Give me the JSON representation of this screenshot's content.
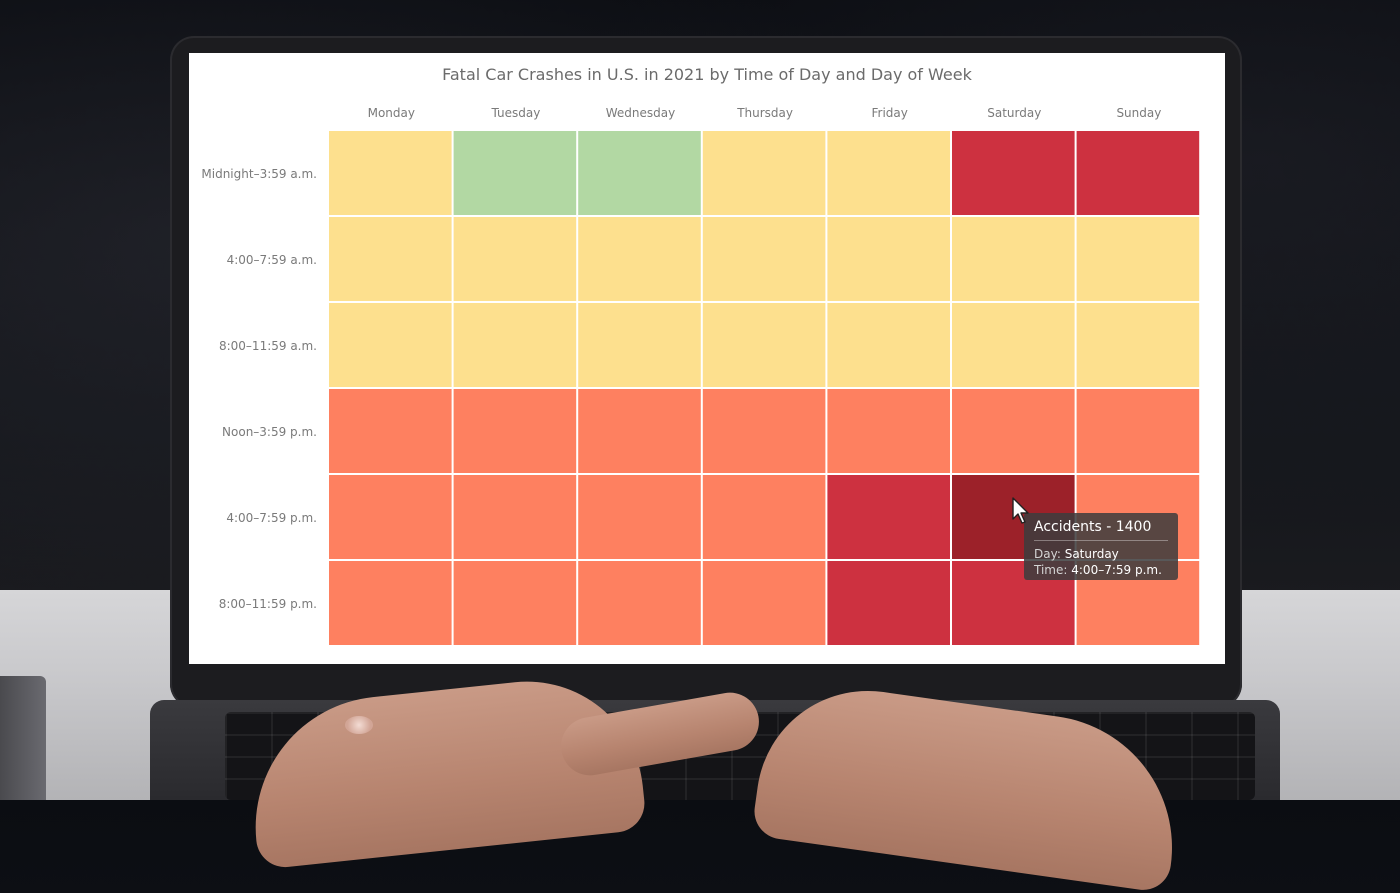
{
  "colors": {
    "green": "#b2d8a3",
    "yellow": "#fde08e",
    "orange": "#fe8060",
    "red": "#cd3140",
    "dark_red": "#9c2129"
  },
  "tooltip": {
    "title": "Accidents - 1400",
    "day_key": "Day:",
    "day_value": "Saturday",
    "time_key": "Time:",
    "time_value": "4:00–7:59 p.m."
  },
  "chart_data": {
    "type": "heatmap",
    "title": "Fatal Car Crashes in U.S. in 2021 by Time of Day and Day of Week",
    "x_categories": [
      "Monday",
      "Tuesday",
      "Wednesday",
      "Thursday",
      "Friday",
      "Saturday",
      "Sunday"
    ],
    "y_categories": [
      "Midnight–3:59 a.m.",
      "4:00–7:59 a.m.",
      "8:00–11:59 a.m.",
      "Noon–3:59 p.m.",
      "4:00–7:59 p.m.",
      "8:00–11:59 p.m."
    ],
    "color_classes": [
      [
        "yellow",
        "green",
        "green",
        "yellow",
        "yellow",
        "red",
        "red"
      ],
      [
        "yellow",
        "yellow",
        "yellow",
        "yellow",
        "yellow",
        "yellow",
        "yellow"
      ],
      [
        "yellow",
        "yellow",
        "yellow",
        "yellow",
        "yellow",
        "yellow",
        "yellow"
      ],
      [
        "orange",
        "orange",
        "orange",
        "orange",
        "orange",
        "orange",
        "orange"
      ],
      [
        "orange",
        "orange",
        "orange",
        "orange",
        "red",
        "dark_red",
        "orange"
      ],
      [
        "orange",
        "orange",
        "orange",
        "orange",
        "red",
        "red",
        "orange"
      ]
    ],
    "highlighted_value": 1400,
    "highlighted_cell": {
      "day": "Saturday",
      "time": "4:00–7:59 p.m."
    },
    "legend": "none",
    "grid": false
  }
}
